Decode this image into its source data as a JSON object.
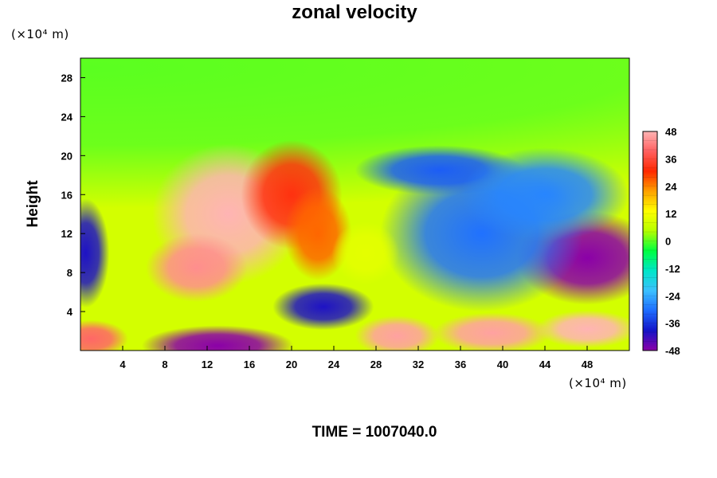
{
  "chart_data": {
    "type": "heatmap",
    "title": "zonal velocity",
    "xlabel": "",
    "ylabel": "Height",
    "x_unit": "(×10⁴ m)",
    "y_unit": "(×10⁴ m)",
    "xlim": [
      0,
      52
    ],
    "ylim": [
      0,
      30
    ],
    "x_ticks": [
      4,
      8,
      12,
      16,
      20,
      24,
      28,
      32,
      36,
      40,
      44,
      48
    ],
    "y_ticks": [
      4,
      8,
      12,
      16,
      20,
      24,
      28
    ],
    "colorbar": {
      "range": [
        -48,
        48
      ],
      "tick_values": [
        48,
        36,
        24,
        12,
        0,
        -12,
        -24,
        -36,
        -48
      ],
      "stops": [
        "#8b00a8",
        "#1414c8",
        "#1e6cff",
        "#3cc0ff",
        "#00e6c8",
        "#00ff40",
        "#b4ff00",
        "#ffff00",
        "#ffa000",
        "#ff2800",
        "#ff6060",
        "#ffb4b4"
      ]
    },
    "features": [
      {
        "x": 0,
        "y": 29,
        "value": 0,
        "spread_x": 60,
        "spread_y": 9
      },
      {
        "x": 14,
        "y": 14,
        "value": 48,
        "spread_x": 4.5,
        "spread_y": 4.5
      },
      {
        "x": 11,
        "y": 8.5,
        "value": 44,
        "spread_x": 3,
        "spread_y": 2.2
      },
      {
        "x": 20,
        "y": 16,
        "value": 32,
        "spread_x": 3,
        "spread_y": 3.5
      },
      {
        "x": 22.5,
        "y": 12,
        "value": 26,
        "spread_x": 2,
        "spread_y": 3
      },
      {
        "x": 48,
        "y": 9.5,
        "value": -48,
        "spread_x": 4.2,
        "spread_y": 3
      },
      {
        "x": 38,
        "y": 12,
        "value": -30,
        "spread_x": 6,
        "spread_y": 5
      },
      {
        "x": 34,
        "y": 18.5,
        "value": -32,
        "spread_x": 5,
        "spread_y": 1.6
      },
      {
        "x": 44,
        "y": 16,
        "value": -28,
        "spread_x": 5,
        "spread_y": 3
      },
      {
        "x": 0.5,
        "y": 10,
        "value": -40,
        "spread_x": 1.4,
        "spread_y": 3.5
      },
      {
        "x": 23,
        "y": 4.5,
        "value": -40,
        "spread_x": 3,
        "spread_y": 1.5
      },
      {
        "x": 13,
        "y": 0.5,
        "value": -48,
        "spread_x": 4.5,
        "spread_y": 1.3
      },
      {
        "x": 30,
        "y": 1.5,
        "value": 46,
        "spread_x": 2.5,
        "spread_y": 1.3
      },
      {
        "x": 39,
        "y": 1.8,
        "value": 46,
        "spread_x": 3.5,
        "spread_y": 1.3
      },
      {
        "x": 48,
        "y": 2.2,
        "value": 48,
        "spread_x": 3,
        "spread_y": 1.2
      },
      {
        "x": 1,
        "y": 1.2,
        "value": 40,
        "spread_x": 2.2,
        "spread_y": 1.2
      },
      {
        "x": 27,
        "y": 10,
        "value": 10,
        "spread_x": 2,
        "spread_y": 2
      }
    ]
  },
  "footer": {
    "time_label": "TIME = 1007040.0"
  }
}
